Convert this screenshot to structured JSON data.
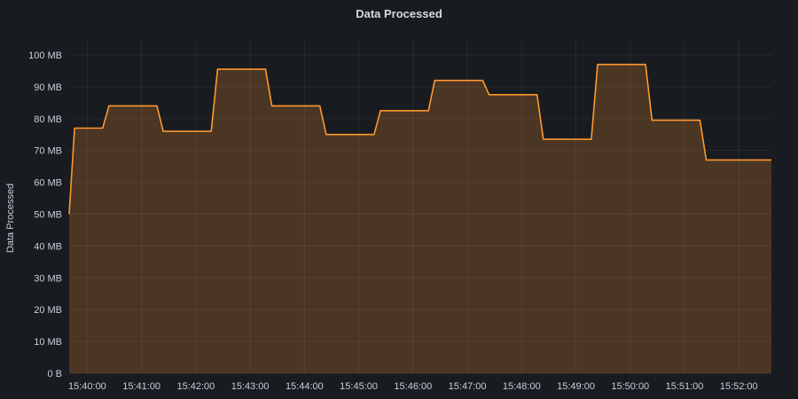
{
  "chart_data": {
    "type": "area",
    "title": "Data Processed",
    "xlabel": "",
    "ylabel": "Data Processed",
    "ylim": [
      0,
      105
    ],
    "unit": "MB",
    "grid": true,
    "legend": "none",
    "x_ticks": [
      "15:40:00",
      "15:41:00",
      "15:42:00",
      "15:43:00",
      "15:44:00",
      "15:45:00",
      "15:46:00",
      "15:47:00",
      "15:48:00",
      "15:49:00",
      "15:50:00",
      "15:51:00",
      "15:52:00"
    ],
    "y_ticks": [
      "0 B",
      "10 MB",
      "20 MB",
      "30 MB",
      "40 MB",
      "50 MB",
      "60 MB",
      "70 MB",
      "80 MB",
      "90 MB",
      "100 MB"
    ],
    "x_range": [
      "15:39:40",
      "15:52:36"
    ],
    "series": [
      {
        "color": "#ff9830",
        "points": [
          {
            "x": "15:39:40",
            "y": 50
          },
          {
            "x": "15:39:46",
            "y": 77
          },
          {
            "x": "15:40:17",
            "y": 77
          },
          {
            "x": "15:40:24",
            "y": 84
          },
          {
            "x": "15:41:17",
            "y": 84
          },
          {
            "x": "15:41:24",
            "y": 76
          },
          {
            "x": "15:42:17",
            "y": 76
          },
          {
            "x": "15:42:24",
            "y": 95.5
          },
          {
            "x": "15:43:17",
            "y": 95.5
          },
          {
            "x": "15:43:24",
            "y": 84
          },
          {
            "x": "15:44:17",
            "y": 84
          },
          {
            "x": "15:44:24",
            "y": 75
          },
          {
            "x": "15:45:17",
            "y": 75
          },
          {
            "x": "15:45:24",
            "y": 82.5
          },
          {
            "x": "15:46:17",
            "y": 82.5
          },
          {
            "x": "15:46:24",
            "y": 92
          },
          {
            "x": "15:47:17",
            "y": 92
          },
          {
            "x": "15:47:24",
            "y": 87.5
          },
          {
            "x": "15:48:17",
            "y": 87.5
          },
          {
            "x": "15:48:24",
            "y": 73.5
          },
          {
            "x": "15:49:17",
            "y": 73.5
          },
          {
            "x": "15:49:24",
            "y": 97
          },
          {
            "x": "15:50:17",
            "y": 97
          },
          {
            "x": "15:50:24",
            "y": 79.5
          },
          {
            "x": "15:51:17",
            "y": 79.5
          },
          {
            "x": "15:51:24",
            "y": 67
          },
          {
            "x": "15:52:36",
            "y": 67
          }
        ]
      }
    ]
  }
}
